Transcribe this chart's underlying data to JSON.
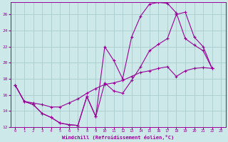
{
  "xlabel": "Windchill (Refroidissement éolien,°C)",
  "bg_color": "#cce8e8",
  "grid_color": "#aacccc",
  "line_color": "#990099",
  "xlim": [
    -0.5,
    23.5
  ],
  "ylim": [
    12,
    27.5
  ],
  "xticks": [
    0,
    1,
    2,
    3,
    4,
    5,
    6,
    7,
    8,
    9,
    10,
    11,
    12,
    13,
    14,
    15,
    16,
    17,
    18,
    19,
    20,
    21,
    22,
    23
  ],
  "yticks": [
    12,
    14,
    16,
    18,
    20,
    22,
    24,
    26
  ],
  "line1_x": [
    0,
    1,
    2,
    3,
    4,
    5,
    6,
    7,
    8,
    9,
    10,
    11,
    12,
    13,
    14,
    15,
    16,
    17,
    18,
    19,
    20,
    21,
    22
  ],
  "line1_y": [
    17.2,
    15.2,
    14.8,
    13.7,
    13.2,
    12.5,
    12.3,
    12.2,
    15.8,
    13.3,
    22.0,
    20.3,
    18.0,
    23.2,
    25.8,
    27.3,
    27.5,
    27.4,
    26.2,
    23.0,
    22.2,
    21.5,
    19.3
  ],
  "line2_x": [
    0,
    1,
    2,
    3,
    4,
    5,
    6,
    7,
    8,
    9,
    10,
    11,
    12,
    13,
    14,
    15,
    16,
    17,
    18,
    19,
    20,
    21,
    22
  ],
  "line2_y": [
    17.2,
    15.2,
    14.8,
    13.7,
    13.2,
    12.5,
    12.3,
    12.2,
    15.8,
    13.3,
    17.5,
    16.5,
    16.2,
    17.8,
    19.5,
    21.5,
    22.3,
    23.0,
    26.0,
    26.3,
    23.2,
    22.0,
    19.3
  ],
  "line3_x": [
    0,
    1,
    2,
    3,
    4,
    5,
    6,
    7,
    8,
    9,
    10,
    11,
    12,
    13,
    14,
    15,
    16,
    17,
    18,
    19,
    20,
    21,
    22
  ],
  "line3_y": [
    17.2,
    15.2,
    15.0,
    14.8,
    14.5,
    14.5,
    15.0,
    15.5,
    16.2,
    16.8,
    17.3,
    17.5,
    17.8,
    18.3,
    18.8,
    19.0,
    19.3,
    19.5,
    18.3,
    19.0,
    19.3,
    19.4,
    19.3
  ]
}
